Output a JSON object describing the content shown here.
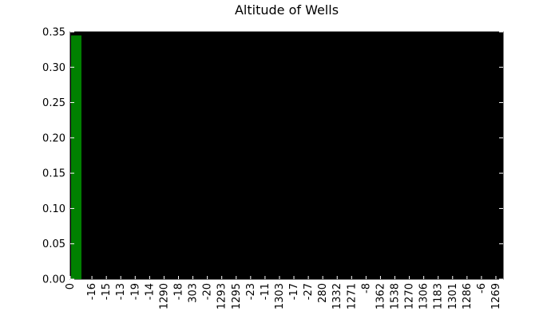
{
  "chart_data": {
    "type": "bar",
    "title": "Altitude of Wells",
    "xlabel": "",
    "ylabel": "",
    "categories": [
      "0",
      "-16",
      "-15",
      "-13",
      "-19",
      "-14",
      "1290",
      "-18",
      "303",
      "-20",
      "1293",
      "1295",
      "-23",
      "-11",
      "1303",
      "-17",
      "-27",
      "280",
      "1332",
      "1271",
      "-8",
      "1362",
      "1538",
      "1270",
      "1306",
      "1183",
      "1301",
      "1286",
      "-6",
      "1269"
    ],
    "values": [
      0.345,
      0,
      0,
      0,
      0,
      0,
      0,
      0,
      0,
      0,
      0,
      0,
      0,
      0,
      0,
      0,
      0,
      0,
      0,
      0,
      0,
      0,
      0,
      0,
      0,
      0,
      0,
      0,
      0,
      0
    ],
    "ylim": [
      0,
      0.35
    ],
    "yticks": [
      "0.00",
      "0.05",
      "0.10",
      "0.15",
      "0.20",
      "0.25",
      "0.30",
      "0.35"
    ],
    "grid": false,
    "colors": {
      "plot_background": "#000000",
      "bar": "#008000",
      "axis": "#000000"
    }
  }
}
